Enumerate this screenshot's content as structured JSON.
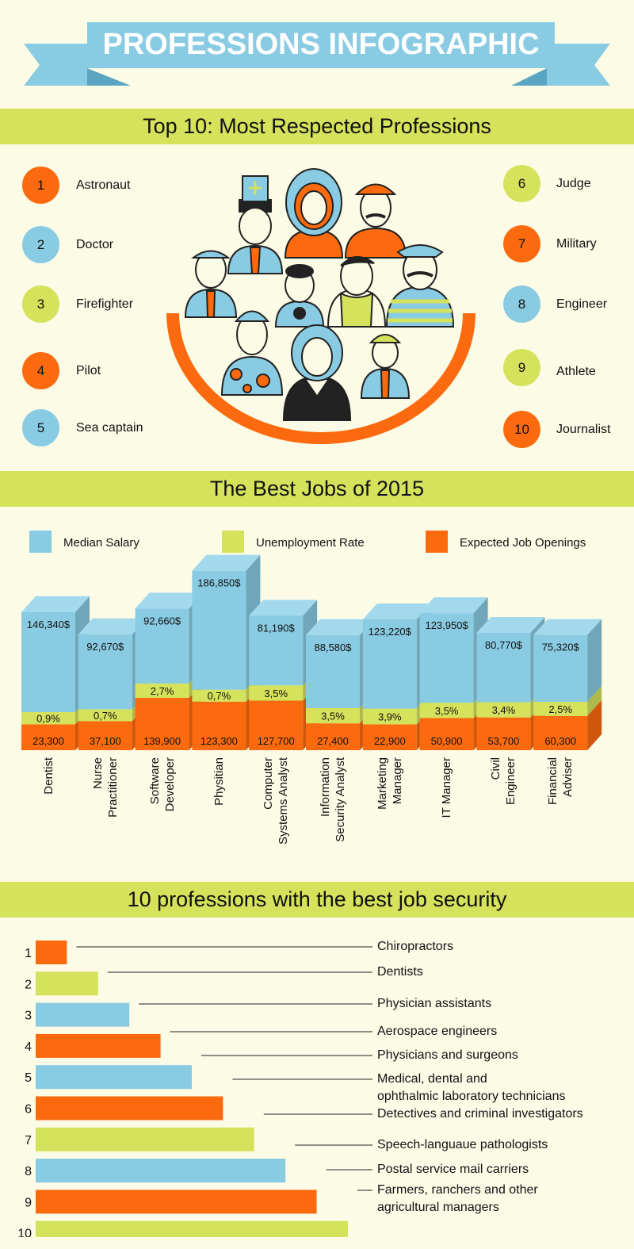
{
  "title": "PROFESSIONS INFOGRAPHIC",
  "colors": {
    "orange": "#fb6a0e",
    "blue": "#89cbe2",
    "green": "#d4e25c",
    "banner": "#89cbe2",
    "banner_dark": "#5aa6c2"
  },
  "section1": {
    "heading": "Top 10: Most Respected Professions",
    "left": [
      {
        "rank": "1",
        "label": "Astronaut",
        "color": "orange"
      },
      {
        "rank": "2",
        "label": "Doctor",
        "color": "blue"
      },
      {
        "rank": "3",
        "label": "Firefighter",
        "color": "green"
      },
      {
        "rank": "4",
        "label": "Pilot",
        "color": "orange"
      },
      {
        "rank": "5",
        "label": "Sea captain",
        "color": "blue"
      }
    ],
    "right": [
      {
        "rank": "6",
        "label": "Judge",
        "color": "green"
      },
      {
        "rank": "7",
        "label": "Military",
        "color": "orange"
      },
      {
        "rank": "8",
        "label": "Engineer",
        "color": "blue"
      },
      {
        "rank": "9",
        "label": "Athlete",
        "color": "green"
      },
      {
        "rank": "10",
        "label": "Journalist",
        "color": "orange"
      }
    ]
  },
  "section2": {
    "heading": "The Best Jobs of 2015",
    "legend": [
      "Median Salary",
      "Unemployment Rate",
      "Expected Job Openings"
    ]
  },
  "section3": {
    "heading": "10 professions with the best job security"
  },
  "chart_data": [
    {
      "type": "bar",
      "title": "The Best Jobs of 2015",
      "categories": [
        "Dentist",
        "Nurse Practitioner",
        "Software Developer",
        "Physitian",
        "Computer Systems Analyst",
        "Information Security Analyst",
        "Marketing Manager",
        "IT Manager",
        "Civil Engineer",
        "Financial Adviser"
      ],
      "category_lines": [
        [
          "Dentist"
        ],
        [
          "Nurse",
          "Practitioner"
        ],
        [
          "Software",
          "Developer"
        ],
        [
          "Physitian"
        ],
        [
          "Computer",
          "Systems Analyst"
        ],
        [
          "Information",
          "Security Analyst"
        ],
        [
          "Marketing",
          "Manager"
        ],
        [
          "IT Manager"
        ],
        [
          "Civil",
          "Engineer"
        ],
        [
          "Financial",
          "Adviser"
        ]
      ],
      "series": [
        {
          "name": "Median Salary",
          "values": [
            146340,
            92670,
            92660,
            186850,
            81190,
            88580,
            123220,
            123950,
            80770,
            75320
          ],
          "labels": [
            "146,340$",
            "92,670$",
            "92,660$",
            "186,850$",
            "81,190$",
            "88,580$",
            "123,220$",
            "123,950$",
            "80,770$",
            "75,320$"
          ]
        },
        {
          "name": "Unemployment Rate",
          "values": [
            0.9,
            0.7,
            2.7,
            0.7,
            3.5,
            3.5,
            3.9,
            3.5,
            3.4,
            2.5
          ],
          "labels": [
            "0,9%",
            "0,7%",
            "2,7%",
            "0,7%",
            "3,5%",
            "3,5%",
            "3,9%",
            "3,5%",
            "3,4%",
            "2,5%"
          ]
        },
        {
          "name": "Expected Job Openings",
          "values": [
            23300,
            37100,
            139900,
            123300,
            127700,
            27400,
            22900,
            50900,
            53700,
            60300
          ],
          "labels": [
            "23,300",
            "37,100",
            "139,900",
            "123,300",
            "127,700",
            "27,400",
            "22,900",
            "50,900",
            "53,700",
            "60,300"
          ]
        }
      ]
    },
    {
      "type": "bar",
      "title": "10 professions with the best job security",
      "categories": [
        "Chiropractors",
        "Dentists",
        "Physician assistants",
        "Aerospace engineers",
        "Physicians and surgeons",
        "Medical, dental and ophthalmic laboratory technicians",
        "Detectives and criminal investigators",
        "Speech-languaue pathologists",
        "Postal service mail carriers",
        "Farmers, ranchers and other agricultural managers"
      ],
      "label_lines": [
        [
          "Chiropractors"
        ],
        [
          "Dentists"
        ],
        [
          "Physician assistants"
        ],
        [
          "Aerospace engineers"
        ],
        [
          "Physicians and surgeons"
        ],
        [
          "Medical, dental and",
          "ophthalmic laboratory technicians"
        ],
        [
          "Detectives and criminal investigators"
        ],
        [
          "Speech-languaue pathologists"
        ],
        [
          "Postal service mail carriers"
        ],
        [
          "Farmers, ranchers and other",
          "agricultural managers"
        ]
      ],
      "ranks": [
        "1",
        "2",
        "3",
        "4",
        "5",
        "6",
        "7",
        "8",
        "9",
        "10"
      ],
      "values": [
        1,
        2,
        3,
        4,
        5,
        6,
        7,
        8,
        9,
        10
      ],
      "bar_colors": [
        "orange",
        "green",
        "blue",
        "orange",
        "blue",
        "orange",
        "green",
        "blue",
        "orange",
        "green"
      ]
    }
  ]
}
